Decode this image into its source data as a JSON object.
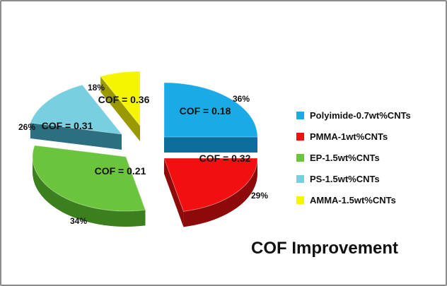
{
  "chart_data": {
    "type": "pie",
    "title": "COF Improvement",
    "slices": [
      {
        "label": "Polyimide-0.7wt%CNTs",
        "percent": "36%",
        "annotation": "COF = 0.18",
        "color": "#1aaae6",
        "side": "#0b6e9a"
      },
      {
        "label": "PMMA-1wt%CNTs",
        "percent": "29%",
        "annotation": "COF = 0.32",
        "color": "#f01010",
        "side": "#8e0a0a"
      },
      {
        "label": "EP-1.5wt%CNTs",
        "percent": "34%",
        "annotation": "COF = 0.21",
        "color": "#6ac43c",
        "side": "#3b7f1f"
      },
      {
        "label": "PS-1.5wt%CNTs",
        "percent": "26%",
        "annotation": "COF = 0.31",
        "color": "#78cfdf",
        "side": "#2b6f80"
      },
      {
        "label": "AMMA-1.5wt%CNTs",
        "percent": "18%",
        "annotation": "COF = 0.36",
        "color": "#f5f500",
        "side": "#9a9a00"
      }
    ],
    "legend_position": "right"
  }
}
